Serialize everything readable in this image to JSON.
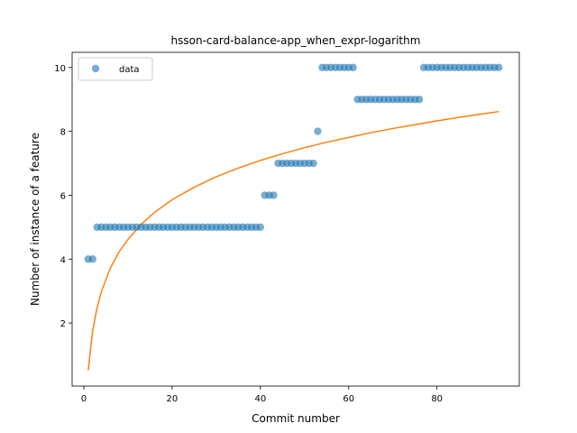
{
  "chart_data": {
    "type": "scatter",
    "title": "hsson-card-balance-app_when_expr-logarithm",
    "xlabel": "Commit number",
    "ylabel": "Number of instance of a feature",
    "xlim": [
      -2.65,
      98.65
    ],
    "ylim": [
      0.025,
      10.475
    ],
    "xticks": [
      0,
      20,
      40,
      60,
      80
    ],
    "yticks": [
      2,
      4,
      6,
      8,
      10
    ],
    "grid": false,
    "legend": {
      "placement": "top-left",
      "entries": [
        "data"
      ]
    },
    "colors": {
      "data": "#1f77b4",
      "fit": "#ff7f0e"
    },
    "series": [
      {
        "name": "data",
        "kind": "scatter",
        "x": [
          1,
          2,
          3,
          4,
          5,
          6,
          7,
          8,
          9,
          10,
          11,
          12,
          13,
          14,
          15,
          16,
          17,
          18,
          19,
          20,
          21,
          22,
          23,
          24,
          25,
          26,
          27,
          28,
          29,
          30,
          31,
          32,
          33,
          34,
          35,
          36,
          37,
          38,
          39,
          40,
          41,
          42,
          43,
          44,
          45,
          46,
          47,
          48,
          49,
          50,
          51,
          52,
          53,
          54,
          55,
          56,
          57,
          58,
          59,
          60,
          61,
          62,
          63,
          64,
          65,
          66,
          67,
          68,
          69,
          70,
          71,
          72,
          73,
          74,
          75,
          76,
          77,
          78,
          79,
          80,
          81,
          82,
          83,
          84,
          85,
          86,
          87,
          88,
          89,
          90,
          91,
          92,
          93,
          94
        ],
        "y": [
          4,
          4,
          5,
          5,
          5,
          5,
          5,
          5,
          5,
          5,
          5,
          5,
          5,
          5,
          5,
          5,
          5,
          5,
          5,
          5,
          5,
          5,
          5,
          5,
          5,
          5,
          5,
          5,
          5,
          5,
          5,
          5,
          5,
          5,
          5,
          5,
          5,
          5,
          5,
          5,
          6,
          6,
          6,
          7,
          7,
          7,
          7,
          7,
          7,
          7,
          7,
          7,
          8,
          10,
          10,
          10,
          10,
          10,
          10,
          10,
          10,
          9,
          9,
          9,
          9,
          9,
          9,
          9,
          9,
          9,
          9,
          9,
          9,
          9,
          9,
          9,
          10,
          10,
          10,
          10,
          10,
          10,
          10,
          10,
          10,
          10,
          10,
          10,
          10,
          10,
          10,
          10,
          10,
          10
        ]
      },
      {
        "name": "",
        "kind": "line",
        "x": [
          1,
          2,
          3,
          4,
          6,
          8,
          10,
          13,
          16,
          20,
          25,
          30,
          35,
          40,
          45,
          50,
          55,
          60,
          65,
          70,
          75,
          80,
          85,
          90,
          94
        ],
        "y": [
          0.52,
          1.76,
          2.48,
          2.99,
          3.72,
          4.23,
          4.62,
          5.09,
          5.46,
          5.86,
          6.25,
          6.58,
          6.85,
          7.09,
          7.3,
          7.49,
          7.66,
          7.81,
          7.96,
          8.09,
          8.21,
          8.33,
          8.44,
          8.54,
          8.62
        ]
      }
    ]
  }
}
